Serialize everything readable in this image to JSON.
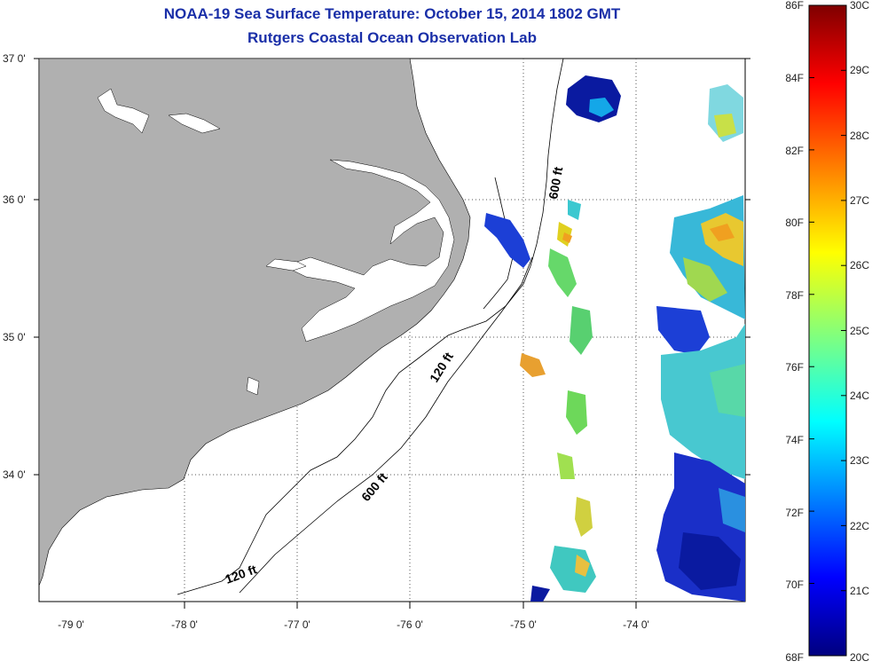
{
  "title": "NOAA-19 Sea Surface Temperature:  October 15, 2014 1802 GMT",
  "subtitle": "Rutgers Coastal Ocean Observation Lab",
  "lat_labels": [
    "37 0'",
    "36 0'",
    "35 0'",
    "34 0'"
  ],
  "lon_labels": [
    "-79 0'",
    "-78 0'",
    "-77 0'",
    "-76 0'",
    "-75 0'",
    "-74 0'"
  ],
  "contour_labels": [
    "600 ft",
    "120 ft",
    "600 ft",
    "120 ft"
  ],
  "colorbar": {
    "fahrenheit_labels": [
      "86F",
      "84F",
      "82F",
      "80F",
      "78F",
      "76F",
      "74F",
      "72F",
      "70F",
      "68F"
    ],
    "celsius_labels": [
      "30C",
      "29C",
      "28C",
      "27C",
      "26C",
      "25C",
      "24C",
      "23C",
      "22C",
      "21C",
      "20C"
    ]
  },
  "colors": {
    "land": "#b0b0b0",
    "title": "#1a2fa8"
  }
}
